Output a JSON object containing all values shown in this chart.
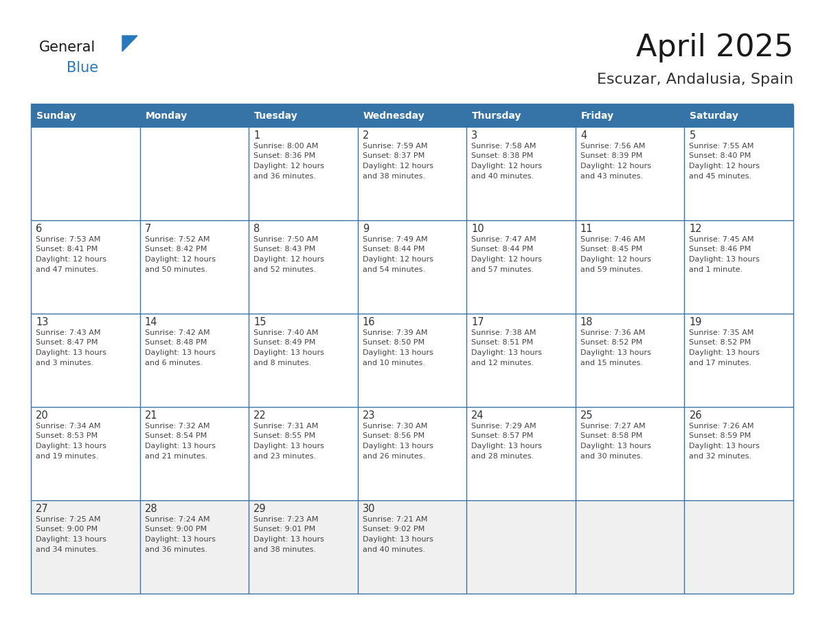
{
  "title": "April 2025",
  "subtitle": "Escuzar, Andalusia, Spain",
  "header_bg": "#3674a8",
  "header_text_color": "#ffffff",
  "border_color": "#3674a8",
  "text_color": "#444444",
  "day_num_color": "#333333",
  "last_row_bg": "#f0f0f0",
  "days_of_week": [
    "Sunday",
    "Monday",
    "Tuesday",
    "Wednesday",
    "Thursday",
    "Friday",
    "Saturday"
  ],
  "weeks": [
    [
      {
        "day": "",
        "sunrise": "",
        "sunset": "",
        "daylight1": "",
        "daylight2": ""
      },
      {
        "day": "",
        "sunrise": "",
        "sunset": "",
        "daylight1": "",
        "daylight2": ""
      },
      {
        "day": "1",
        "sunrise": "8:00 AM",
        "sunset": "8:36 PM",
        "daylight1": "12 hours",
        "daylight2": "and 36 minutes."
      },
      {
        "day": "2",
        "sunrise": "7:59 AM",
        "sunset": "8:37 PM",
        "daylight1": "12 hours",
        "daylight2": "and 38 minutes."
      },
      {
        "day": "3",
        "sunrise": "7:58 AM",
        "sunset": "8:38 PM",
        "daylight1": "12 hours",
        "daylight2": "and 40 minutes."
      },
      {
        "day": "4",
        "sunrise": "7:56 AM",
        "sunset": "8:39 PM",
        "daylight1": "12 hours",
        "daylight2": "and 43 minutes."
      },
      {
        "day": "5",
        "sunrise": "7:55 AM",
        "sunset": "8:40 PM",
        "daylight1": "12 hours",
        "daylight2": "and 45 minutes."
      }
    ],
    [
      {
        "day": "6",
        "sunrise": "7:53 AM",
        "sunset": "8:41 PM",
        "daylight1": "12 hours",
        "daylight2": "and 47 minutes."
      },
      {
        "day": "7",
        "sunrise": "7:52 AM",
        "sunset": "8:42 PM",
        "daylight1": "12 hours",
        "daylight2": "and 50 minutes."
      },
      {
        "day": "8",
        "sunrise": "7:50 AM",
        "sunset": "8:43 PM",
        "daylight1": "12 hours",
        "daylight2": "and 52 minutes."
      },
      {
        "day": "9",
        "sunrise": "7:49 AM",
        "sunset": "8:44 PM",
        "daylight1": "12 hours",
        "daylight2": "and 54 minutes."
      },
      {
        "day": "10",
        "sunrise": "7:47 AM",
        "sunset": "8:44 PM",
        "daylight1": "12 hours",
        "daylight2": "and 57 minutes."
      },
      {
        "day": "11",
        "sunrise": "7:46 AM",
        "sunset": "8:45 PM",
        "daylight1": "12 hours",
        "daylight2": "and 59 minutes."
      },
      {
        "day": "12",
        "sunrise": "7:45 AM",
        "sunset": "8:46 PM",
        "daylight1": "13 hours",
        "daylight2": "and 1 minute."
      }
    ],
    [
      {
        "day": "13",
        "sunrise": "7:43 AM",
        "sunset": "8:47 PM",
        "daylight1": "13 hours",
        "daylight2": "and 3 minutes."
      },
      {
        "day": "14",
        "sunrise": "7:42 AM",
        "sunset": "8:48 PM",
        "daylight1": "13 hours",
        "daylight2": "and 6 minutes."
      },
      {
        "day": "15",
        "sunrise": "7:40 AM",
        "sunset": "8:49 PM",
        "daylight1": "13 hours",
        "daylight2": "and 8 minutes."
      },
      {
        "day": "16",
        "sunrise": "7:39 AM",
        "sunset": "8:50 PM",
        "daylight1": "13 hours",
        "daylight2": "and 10 minutes."
      },
      {
        "day": "17",
        "sunrise": "7:38 AM",
        "sunset": "8:51 PM",
        "daylight1": "13 hours",
        "daylight2": "and 12 minutes."
      },
      {
        "day": "18",
        "sunrise": "7:36 AM",
        "sunset": "8:52 PM",
        "daylight1": "13 hours",
        "daylight2": "and 15 minutes."
      },
      {
        "day": "19",
        "sunrise": "7:35 AM",
        "sunset": "8:52 PM",
        "daylight1": "13 hours",
        "daylight2": "and 17 minutes."
      }
    ],
    [
      {
        "day": "20",
        "sunrise": "7:34 AM",
        "sunset": "8:53 PM",
        "daylight1": "13 hours",
        "daylight2": "and 19 minutes."
      },
      {
        "day": "21",
        "sunrise": "7:32 AM",
        "sunset": "8:54 PM",
        "daylight1": "13 hours",
        "daylight2": "and 21 minutes."
      },
      {
        "day": "22",
        "sunrise": "7:31 AM",
        "sunset": "8:55 PM",
        "daylight1": "13 hours",
        "daylight2": "and 23 minutes."
      },
      {
        "day": "23",
        "sunrise": "7:30 AM",
        "sunset": "8:56 PM",
        "daylight1": "13 hours",
        "daylight2": "and 26 minutes."
      },
      {
        "day": "24",
        "sunrise": "7:29 AM",
        "sunset": "8:57 PM",
        "daylight1": "13 hours",
        "daylight2": "and 28 minutes."
      },
      {
        "day": "25",
        "sunrise": "7:27 AM",
        "sunset": "8:58 PM",
        "daylight1": "13 hours",
        "daylight2": "and 30 minutes."
      },
      {
        "day": "26",
        "sunrise": "7:26 AM",
        "sunset": "8:59 PM",
        "daylight1": "13 hours",
        "daylight2": "and 32 minutes."
      }
    ],
    [
      {
        "day": "27",
        "sunrise": "7:25 AM",
        "sunset": "9:00 PM",
        "daylight1": "13 hours",
        "daylight2": "and 34 minutes."
      },
      {
        "day": "28",
        "sunrise": "7:24 AM",
        "sunset": "9:00 PM",
        "daylight1": "13 hours",
        "daylight2": "and 36 minutes."
      },
      {
        "day": "29",
        "sunrise": "7:23 AM",
        "sunset": "9:01 PM",
        "daylight1": "13 hours",
        "daylight2": "and 38 minutes."
      },
      {
        "day": "30",
        "sunrise": "7:21 AM",
        "sunset": "9:02 PM",
        "daylight1": "13 hours",
        "daylight2": "and 40 minutes."
      },
      {
        "day": "",
        "sunrise": "",
        "sunset": "",
        "daylight1": "",
        "daylight2": ""
      },
      {
        "day": "",
        "sunrise": "",
        "sunset": "",
        "daylight1": "",
        "daylight2": ""
      },
      {
        "day": "",
        "sunrise": "",
        "sunset": "",
        "daylight1": "",
        "daylight2": ""
      }
    ]
  ],
  "logo_general_color": "#1a1a1a",
  "logo_blue_color": "#2878be",
  "logo_triangle_color": "#2878be",
  "title_color": "#1a1a1a",
  "subtitle_color": "#333333"
}
